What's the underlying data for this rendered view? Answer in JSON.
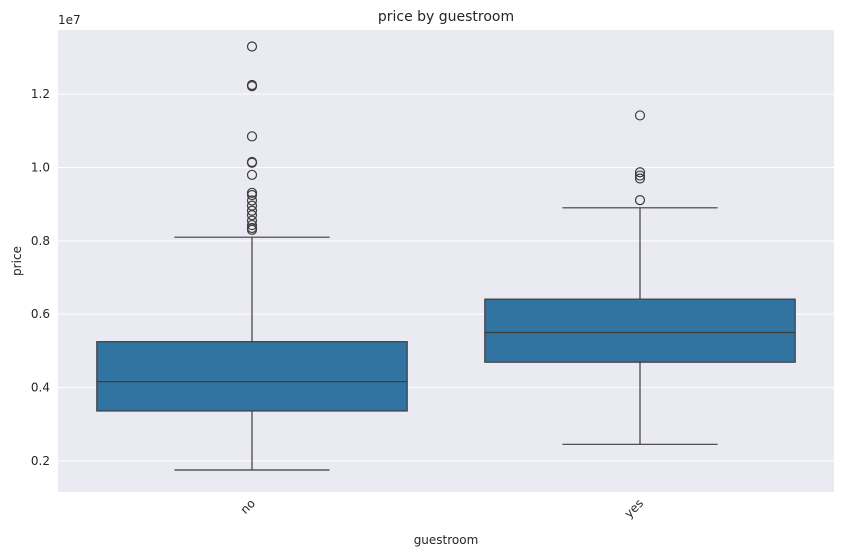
{
  "chart_data": {
    "type": "box",
    "title": "price by guestroom",
    "xlabel": "guestroom",
    "ylabel": "price",
    "y_offset_label": "1e7",
    "categories": [
      "no",
      "yes"
    ],
    "y_ticks": [
      0.2,
      0.4,
      0.6,
      0.8,
      1.0,
      1.2
    ],
    "y_tick_labels": [
      "0.2",
      "0.4",
      "0.6",
      "0.8",
      "1.0",
      "1.2"
    ],
    "ylim": [
      0.115,
      1.375
    ],
    "grid": true,
    "boxes": [
      {
        "category": "no",
        "whisker_low": 0.175,
        "q1": 0.336,
        "median": 0.416,
        "q3": 0.525,
        "whisker_high": 0.81,
        "outliers": [
          1.33,
          1.225,
          1.222,
          1.085,
          1.015,
          1.013,
          0.98,
          0.931,
          0.925,
          0.91,
          0.896,
          0.882,
          0.87,
          0.855,
          0.843,
          0.835,
          0.83
        ]
      },
      {
        "category": "yes",
        "whisker_low": 0.245,
        "q1": 0.469,
        "median": 0.55,
        "q3": 0.641,
        "whisker_high": 0.89,
        "outliers": [
          1.142,
          0.987,
          0.978,
          0.97,
          0.911
        ]
      }
    ],
    "colors": {
      "box_fill": "#3274a1",
      "line": "#3d3d3d",
      "plot_bg": "#eaeaf2",
      "grid": "#ffffff"
    }
  }
}
